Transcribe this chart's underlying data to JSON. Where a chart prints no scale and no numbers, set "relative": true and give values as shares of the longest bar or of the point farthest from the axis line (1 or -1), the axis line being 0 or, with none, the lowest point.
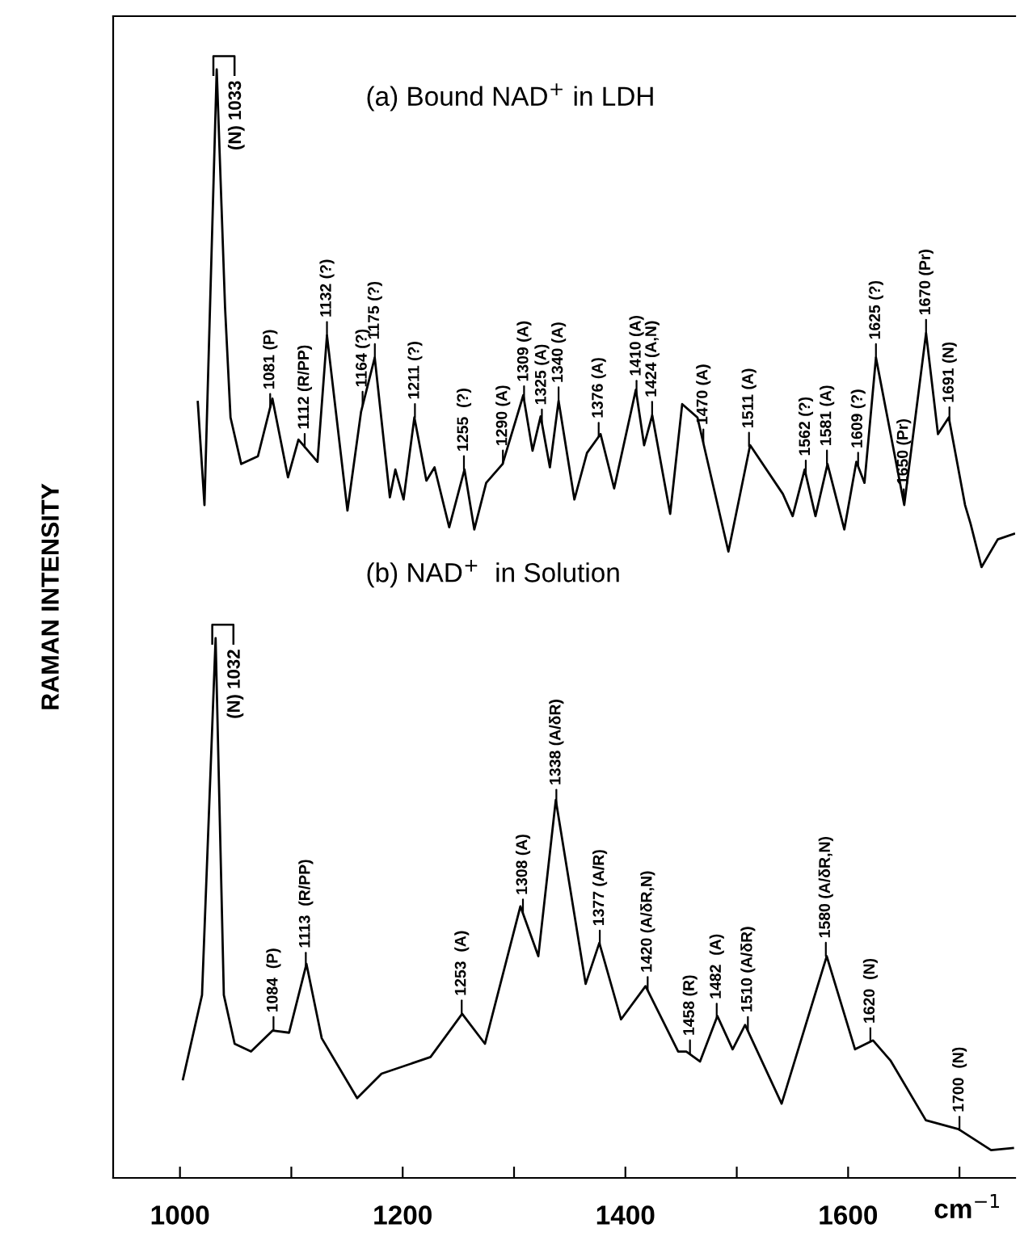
{
  "chart_data": {
    "type": "line",
    "relative": true,
    "xlabel": "cm$^{−1}$",
    "ylabel": "RAMAN INTENSITY",
    "xlim": [
      940,
      1750
    ],
    "xticks": [
      1000,
      {
        "value": 1100,
        "label": null
      },
      1200,
      {
        "value": 1300,
        "label": null
      },
      1400,
      {
        "value": 1500,
        "label": null
      },
      1600,
      {
        "value": 1700,
        "label": null
      }
    ],
    "grid": false,
    "legend": false,
    "marker": "none",
    "line_style": "solid",
    "series": [
      {
        "color": "#000000",
        "x": [
          1016,
          1022,
          1033,
          1040.5,
          1045.4,
          1055,
          1070,
          1083,
          1097,
          1106.4,
          1123.5,
          1132,
          1150.4,
          1162.6,
          1174.9,
          1188.5,
          1193.4,
          1200.8,
          1210.5,
          1221.3,
          1228.6,
          1241.8,
          1255.5,
          1264.3,
          1275,
          1289.7,
          1308.3,
          1316.6,
          1323.9,
          1332.2,
          1340,
          1354.2,
          1365.5,
          1377.7,
          1389.9,
          1409.4,
          1416.8,
          1424.1,
          1440.2,
          1451,
          1464.7,
          1492.5,
          1512,
          1541.4,
          1550.2,
          1561,
          1570.7,
          1581.5,
          1596.6,
          1607.4,
          1614.7,
          1625,
          1650.4,
          1670,
          1680.7,
          1690.4,
          1705,
          1710,
          1719.8,
          1734.4,
          1749
        ],
        "values": [
          0.7,
          0.607,
          1.0,
          0.785,
          0.686,
          0.644,
          0.651,
          0.703,
          0.632,
          0.666,
          0.646,
          0.76,
          0.602,
          0.691,
          0.74,
          0.614,
          0.639,
          0.612,
          0.686,
          0.629,
          0.641,
          0.587,
          0.639,
          0.585,
          0.627,
          0.644,
          0.706,
          0.656,
          0.687,
          0.641,
          0.701,
          0.612,
          0.654,
          0.671,
          0.622,
          0.711,
          0.661,
          0.688,
          0.599,
          0.698,
          0.686,
          0.565,
          0.661,
          0.617,
          0.597,
          0.639,
          0.597,
          0.644,
          0.585,
          0.646,
          0.627,
          0.74,
          0.607,
          0.762,
          0.671,
          0.686,
          0.607,
          0.59,
          0.551,
          0.576,
          0.581
        ]
      },
      {
        "color": "#000000",
        "x": [
          1002.7,
          1019.8,
          1032,
          1039.4,
          1049.1,
          1063.8,
          1083.3,
          1098,
          1113.6,
          1127.3,
          1159.1,
          1181,
          1225,
          1253.4,
          1273.9,
          1305.7,
          1321.8,
          1337.5,
          1364.3,
          1376.6,
          1396.1,
          1418.1,
          1447.4,
          1454.7,
          1467,
          1482.6,
          1496.3,
          1507.5,
          1540.3,
          1580.8,
          1606.2,
          1622.4,
          1638,
          1669.8,
          1699.1,
          1728.4,
          1748
        ],
        "values": [
          0.089,
          0.165,
          0.487,
          0.165,
          0.121,
          0.114,
          0.133,
          0.131,
          0.193,
          0.126,
          0.072,
          0.094,
          0.109,
          0.148,
          0.121,
          0.245,
          0.2,
          0.341,
          0.175,
          0.212,
          0.143,
          0.173,
          0.114,
          0.114,
          0.105,
          0.146,
          0.116,
          0.138,
          0.067,
          0.2,
          0.116,
          0.124,
          0.106,
          0.052,
          0.044,
          0.025,
          0.027
        ]
      }
    ],
    "annotations": [
      "(a) Bound NAD$^{+}$ in LDH",
      "(b) NAD$^{+}$  in Solution",
      {
        "text": "(N) 1033",
        "x": 1033,
        "y": 1.0
      },
      {
        "text": "1081 (P)",
        "x": 1081,
        "y": 0.695
      },
      {
        "text": "1112 (R/PP)",
        "x": 1112,
        "y": 0.659
      },
      {
        "text": "1132 (?)",
        "x": 1132,
        "y": 0.76
      },
      {
        "text": "1164 (?)",
        "x": 1164,
        "y": 0.697
      },
      {
        "text": "1175 (?)",
        "x": 1175,
        "y": 0.74
      },
      {
        "text": "1211 (?)",
        "x": 1211,
        "y": 0.686
      },
      {
        "text": "1255  (?)",
        "x": 1255,
        "y": 0.639
      },
      {
        "text": "1290 (A)",
        "x": 1290,
        "y": 0.644
      },
      {
        "text": "1309 (A)",
        "x": 1309,
        "y": 0.702
      },
      {
        "text": "1325 (A)",
        "x": 1325,
        "y": 0.681
      },
      {
        "text": "1340 (A)",
        "x": 1340,
        "y": 0.701
      },
      {
        "text": "1376 (A)",
        "x": 1376,
        "y": 0.669
      },
      {
        "text": "1410 (A)",
        "x": 1410,
        "y": 0.707
      },
      {
        "text": "1424 (A,N)",
        "x": 1424,
        "y": 0.688
      },
      {
        "text": "1470 (A)",
        "x": 1470,
        "y": 0.663
      },
      {
        "text": "1511 (A)",
        "x": 1511,
        "y": 0.66
      },
      {
        "text": "1562 (?)",
        "x": 1562,
        "y": 0.635
      },
      {
        "text": "1581 (A)",
        "x": 1581,
        "y": 0.644
      },
      {
        "text": "1609 (?)",
        "x": 1609,
        "y": 0.642
      },
      {
        "text": "1625 (?)",
        "x": 1625,
        "y": 0.74
      },
      {
        "text": "1650 (Pr)",
        "x": 1650,
        "y": 0.609
      },
      {
        "text": "1670 (Pr)",
        "x": 1670,
        "y": 0.762
      },
      {
        "text": "1691 (N)",
        "x": 1691,
        "y": 0.683
      },
      {
        "text": "(N) 1032",
        "x": 1032,
        "y": 0.487
      },
      {
        "text": "1084  (P)",
        "x": 1084,
        "y": 0.133
      },
      {
        "text": "1113  (R/PP)",
        "x": 1113,
        "y": 0.191
      },
      {
        "text": "1253  (A)",
        "x": 1253,
        "y": 0.148
      },
      {
        "text": "1308 (A)",
        "x": 1308,
        "y": 0.239
      },
      {
        "text": "1338 (A/δR)",
        "x": 1338,
        "y": 0.338
      },
      {
        "text": "1377 (A/R)",
        "x": 1377,
        "y": 0.211
      },
      {
        "text": "1420 (A/δR,N)",
        "x": 1420,
        "y": 0.169
      },
      {
        "text": "1458 (R)",
        "x": 1458,
        "y": 0.112
      },
      {
        "text": "1482  (A)",
        "x": 1482,
        "y": 0.145
      },
      {
        "text": "1510 (A/δR)",
        "x": 1510,
        "y": 0.133
      },
      {
        "text": "1580 (A/δR,N)",
        "x": 1580,
        "y": 0.2
      },
      {
        "text": "1620  (N)",
        "x": 1620,
        "y": 0.123
      },
      {
        "text": "1700  (N)",
        "x": 1700,
        "y": 0.043
      }
    ]
  }
}
